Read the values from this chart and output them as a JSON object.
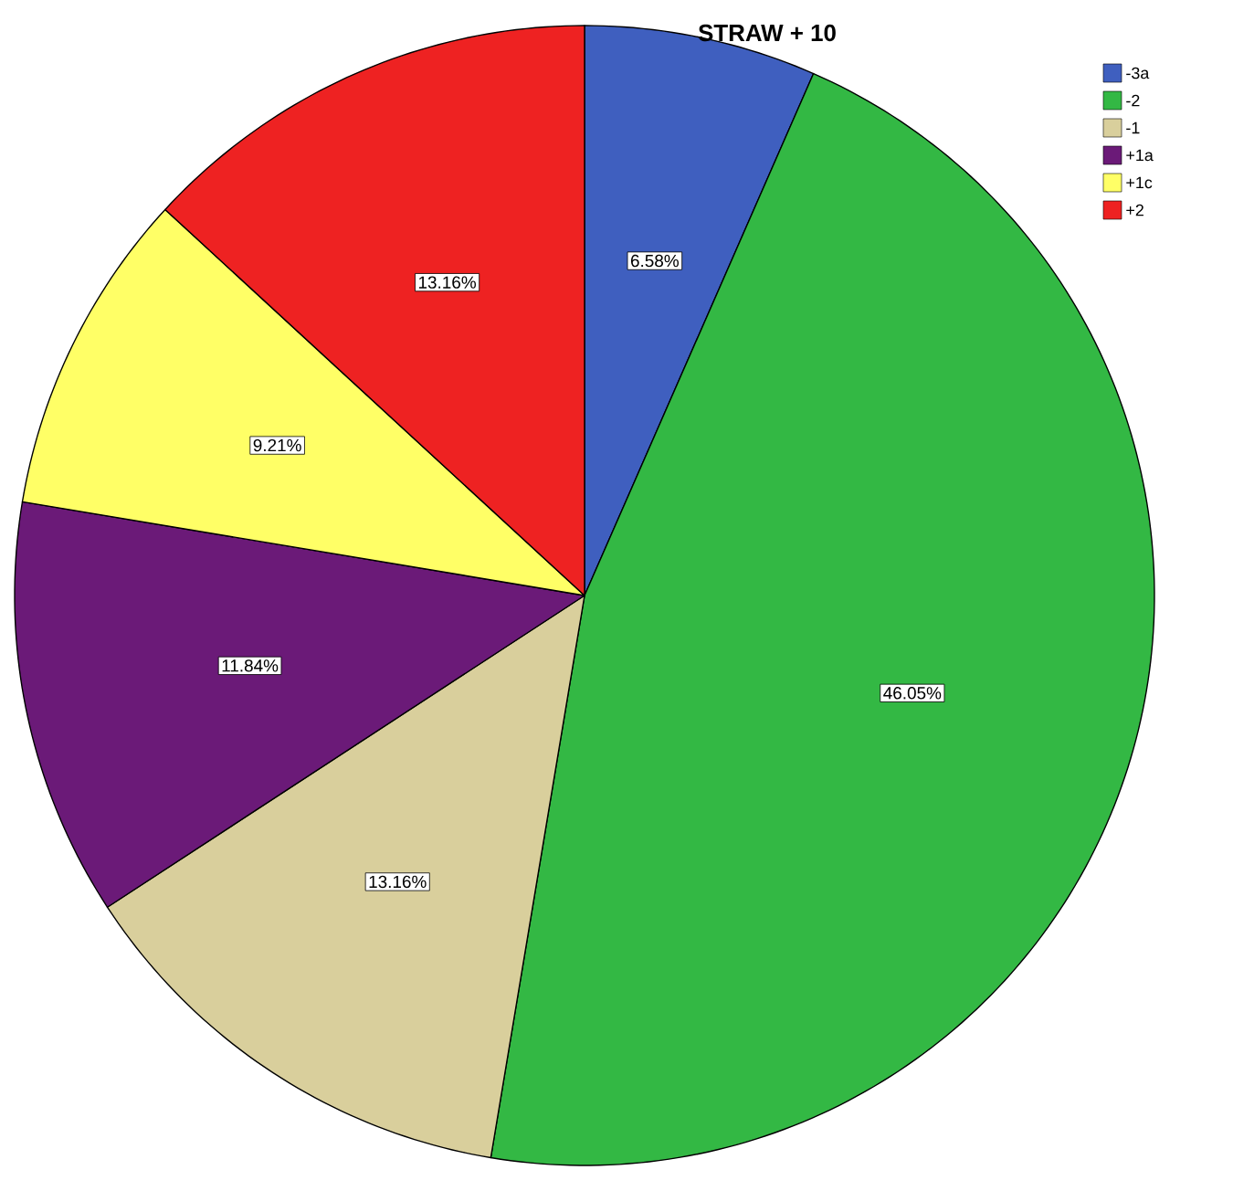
{
  "chart_data": {
    "type": "pie",
    "title": "STRAW + 10",
    "categories": [
      "-3a",
      "-2",
      "-1",
      "+1a",
      "+1c",
      "+2"
    ],
    "values": [
      6.58,
      46.05,
      13.16,
      11.84,
      9.21,
      13.16
    ],
    "value_labels": [
      "6.58%",
      "46.05%",
      "13.16%",
      "11.84%",
      "9.21%",
      "13.16%"
    ],
    "colors": [
      "#3f5fbf",
      "#33b844",
      "#d9cf9c",
      "#6b1a78",
      "#ffff66",
      "#ee2222"
    ],
    "legend": "top right"
  }
}
